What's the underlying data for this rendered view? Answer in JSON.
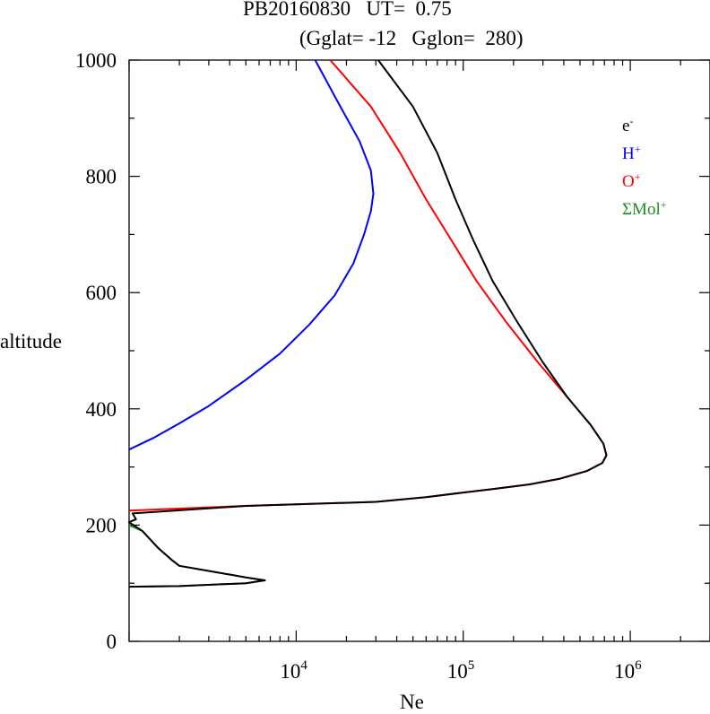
{
  "chart_data": {
    "type": "line",
    "title": "PB20160830   UT=  0.75",
    "subtitle": "(Gglat= -12   Gglon=  280)",
    "xlabel": "Ne",
    "ylabel": "altitude",
    "x_scale": "log",
    "xlim": [
      1000,
      3000000
    ],
    "ylim": [
      0,
      1000
    ],
    "yticks": [
      "0",
      "200",
      "400",
      "600",
      "800",
      "1000"
    ],
    "xticks": [
      {
        "base": "10",
        "exp": "4",
        "value": 10000
      },
      {
        "base": "10",
        "exp": "5",
        "value": 100000
      },
      {
        "base": "10",
        "exp": "6",
        "value": 1000000
      }
    ],
    "legend_position": "top-right",
    "series": [
      {
        "name": "H+",
        "legend_base": "H",
        "legend_sup": "+",
        "color": "#0000ff",
        "points": [
          [
            1000,
            330
          ],
          [
            1400,
            350
          ],
          [
            2000,
            375
          ],
          [
            3000,
            405
          ],
          [
            5000,
            450
          ],
          [
            8000,
            495
          ],
          [
            12000,
            545
          ],
          [
            17000,
            595
          ],
          [
            22000,
            650
          ],
          [
            25500,
            700
          ],
          [
            28000,
            740
          ],
          [
            29000,
            770
          ],
          [
            28000,
            810
          ],
          [
            24000,
            860
          ],
          [
            18000,
            925
          ],
          [
            13000,
            1000
          ]
        ]
      },
      {
        "name": "O+",
        "legend_base": "O",
        "legend_sup": "+",
        "color": "#ff0000",
        "points": [
          [
            1000,
            225
          ],
          [
            5000,
            233
          ],
          [
            30000,
            240
          ],
          [
            60000,
            248
          ],
          [
            100000,
            256
          ],
          [
            150000,
            262
          ],
          [
            250000,
            270
          ],
          [
            380000,
            280
          ],
          [
            550000,
            293
          ],
          [
            680000,
            307
          ],
          [
            720000,
            320
          ],
          [
            690000,
            340
          ],
          [
            580000,
            372
          ],
          [
            420000,
            420
          ],
          [
            280000,
            480
          ],
          [
            180000,
            550
          ],
          [
            120000,
            620
          ],
          [
            85000,
            690
          ],
          [
            60000,
            760
          ],
          [
            42000,
            840
          ],
          [
            28000,
            920
          ],
          [
            16000,
            1000
          ]
        ]
      },
      {
        "name": "ΣMol+",
        "legend_base": "ΣMol",
        "legend_sup": "+",
        "color": "#228b22",
        "points": [
          [
            1000,
            200
          ],
          [
            1200,
            190
          ],
          [
            1500,
            160
          ],
          [
            1800,
            140
          ],
          [
            2000,
            130
          ],
          [
            5000,
            110
          ],
          [
            6500,
            105
          ],
          [
            5000,
            100
          ],
          [
            2000,
            95
          ],
          [
            1000,
            94
          ]
        ]
      },
      {
        "name": "e-",
        "legend_base": "e",
        "legend_sup": "-",
        "color": "#000000",
        "points": [
          [
            1000,
            94
          ],
          [
            2000,
            95
          ],
          [
            5000,
            100
          ],
          [
            6500,
            105
          ],
          [
            5000,
            110
          ],
          [
            2000,
            130
          ],
          [
            1800,
            140
          ],
          [
            1500,
            160
          ],
          [
            1200,
            190
          ],
          [
            1000,
            205
          ],
          [
            1100,
            210
          ],
          [
            1050,
            220
          ],
          [
            5000,
            233
          ],
          [
            30000,
            240
          ],
          [
            60000,
            248
          ],
          [
            100000,
            256
          ],
          [
            150000,
            262
          ],
          [
            250000,
            270
          ],
          [
            380000,
            280
          ],
          [
            550000,
            293
          ],
          [
            680000,
            307
          ],
          [
            720000,
            320
          ],
          [
            690000,
            340
          ],
          [
            580000,
            372
          ],
          [
            420000,
            420
          ],
          [
            300000,
            480
          ],
          [
            210000,
            550
          ],
          [
            150000,
            620
          ],
          [
            115000,
            690
          ],
          [
            90000,
            760
          ],
          [
            70000,
            840
          ],
          [
            50000,
            920
          ],
          [
            31000,
            1000
          ]
        ]
      }
    ]
  }
}
